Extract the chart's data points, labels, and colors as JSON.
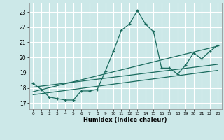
{
  "xlabel": "Humidex (Indice chaleur)",
  "bg_color": "#cce8e8",
  "grid_color": "#ffffff",
  "line_color": "#1a6b5e",
  "xlim": [
    -0.5,
    23.5
  ],
  "ylim": [
    16.6,
    23.6
  ],
  "yticks": [
    17,
    18,
    19,
    20,
    21,
    22,
    23
  ],
  "xticks": [
    0,
    1,
    2,
    3,
    4,
    5,
    6,
    7,
    8,
    9,
    10,
    11,
    12,
    13,
    14,
    15,
    16,
    17,
    18,
    19,
    20,
    21,
    22,
    23
  ],
  "series1_x": [
    0,
    1,
    2,
    3,
    4,
    5,
    6,
    7,
    8,
    9,
    10,
    11,
    12,
    13,
    14,
    15,
    16,
    17,
    18,
    19,
    20,
    21,
    22,
    23
  ],
  "series1_y": [
    18.3,
    17.9,
    17.4,
    17.3,
    17.2,
    17.2,
    17.8,
    17.8,
    17.9,
    19.1,
    20.4,
    21.8,
    22.2,
    23.1,
    22.2,
    21.7,
    19.3,
    19.3,
    18.9,
    19.5,
    20.3,
    19.9,
    20.4,
    20.8
  ],
  "series2_x": [
    0,
    23
  ],
  "series2_y": [
    17.75,
    20.75
  ],
  "series3_x": [
    0,
    23
  ],
  "series3_y": [
    18.05,
    19.55
  ],
  "series4_x": [
    0,
    23
  ],
  "series4_y": [
    17.55,
    19.15
  ]
}
